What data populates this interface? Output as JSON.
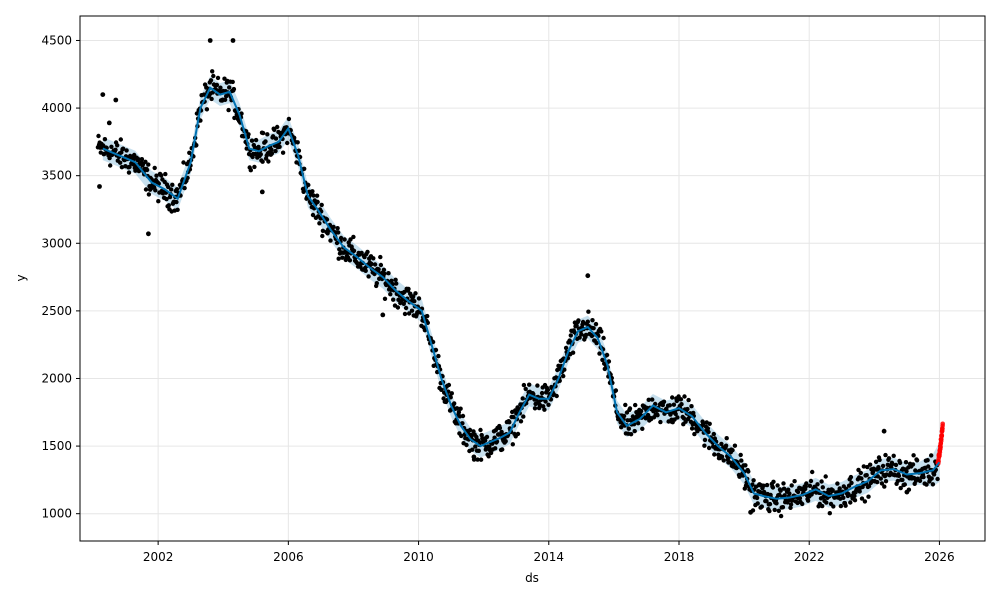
{
  "chart_data": {
    "type": "scatter",
    "title": "",
    "xlabel": "ds",
    "ylabel": "y",
    "grid": true,
    "xlim": [
      1999.6,
      2027.4
    ],
    "ylim": [
      798,
      4681
    ],
    "x_ticks": [
      2002,
      2006,
      2010,
      2014,
      2018,
      2022,
      2026
    ],
    "y_ticks": [
      1000,
      1500,
      2000,
      2500,
      3000,
      3500,
      4000,
      4500
    ],
    "colors": {
      "history_points": "#000000",
      "recent_points": "#ff0000",
      "forecast_line": "#0072b2",
      "uncertainty_band": "#0072b2",
      "grid": "#e6e6e6"
    },
    "forecast": {
      "x": [
        2000.3,
        2000.8,
        2001.3,
        2001.8,
        2002.2,
        2002.6,
        2003.0,
        2003.3,
        2003.6,
        2003.9,
        2004.2,
        2004.5,
        2004.8,
        2005.1,
        2005.4,
        2005.7,
        2006.0,
        2006.3,
        2006.6,
        2006.9,
        2007.3,
        2007.7,
        2008.1,
        2008.5,
        2008.9,
        2009.3,
        2009.7,
        2010.1,
        2010.4,
        2010.7,
        2011.0,
        2011.3,
        2011.6,
        2011.9,
        2012.2,
        2012.5,
        2012.8,
        2013.1,
        2013.4,
        2013.7,
        2014.0,
        2014.3,
        2014.6,
        2014.9,
        2015.2,
        2015.5,
        2015.8,
        2016.1,
        2016.4,
        2016.8,
        2017.2,
        2017.6,
        2018.0,
        2018.4,
        2018.8,
        2019.2,
        2019.6,
        2020.0,
        2020.3,
        2020.6,
        2021.0,
        2021.4,
        2021.8,
        2022.2,
        2022.6,
        2023.0,
        2023.4,
        2023.8,
        2024.2,
        2024.6,
        2025.0,
        2025.4,
        2025.8,
        2026.0
      ],
      "y": [
        3700,
        3650,
        3600,
        3450,
        3400,
        3330,
        3600,
        4000,
        4150,
        4100,
        4120,
        3950,
        3700,
        3680,
        3720,
        3750,
        3850,
        3650,
        3350,
        3250,
        3100,
        2970,
        2900,
        2820,
        2750,
        2650,
        2570,
        2500,
        2250,
        2000,
        1800,
        1650,
        1550,
        1500,
        1530,
        1560,
        1600,
        1750,
        1880,
        1850,
        1850,
        2000,
        2200,
        2350,
        2380,
        2300,
        2100,
        1750,
        1650,
        1700,
        1800,
        1750,
        1780,
        1720,
        1600,
        1500,
        1420,
        1300,
        1150,
        1130,
        1110,
        1120,
        1140,
        1180,
        1130,
        1150,
        1200,
        1240,
        1320,
        1330,
        1290,
        1300,
        1320,
        1380
      ],
      "band_halfwidth": 85
    },
    "history_outliers": [
      {
        "x": 2000.3,
        "y": 4100
      },
      {
        "x": 2000.7,
        "y": 4060
      },
      {
        "x": 2000.5,
        "y": 3890
      },
      {
        "x": 2000.2,
        "y": 3420
      },
      {
        "x": 2001.7,
        "y": 3070
      },
      {
        "x": 2003.6,
        "y": 4500
      },
      {
        "x": 2004.3,
        "y": 4500
      },
      {
        "x": 2005.2,
        "y": 3380
      },
      {
        "x": 2015.2,
        "y": 2760
      },
      {
        "x": 2020.2,
        "y": 1010
      },
      {
        "x": 2024.3,
        "y": 1610
      },
      {
        "x": 2025.0,
        "y": 1160
      },
      {
        "x": 2008.9,
        "y": 2470
      },
      {
        "x": 2011.7,
        "y": 1420
      }
    ],
    "recent_points": {
      "x_start": 2025.95,
      "x_end": 2026.1,
      "y_min": 1380,
      "y_max": 1650
    }
  }
}
